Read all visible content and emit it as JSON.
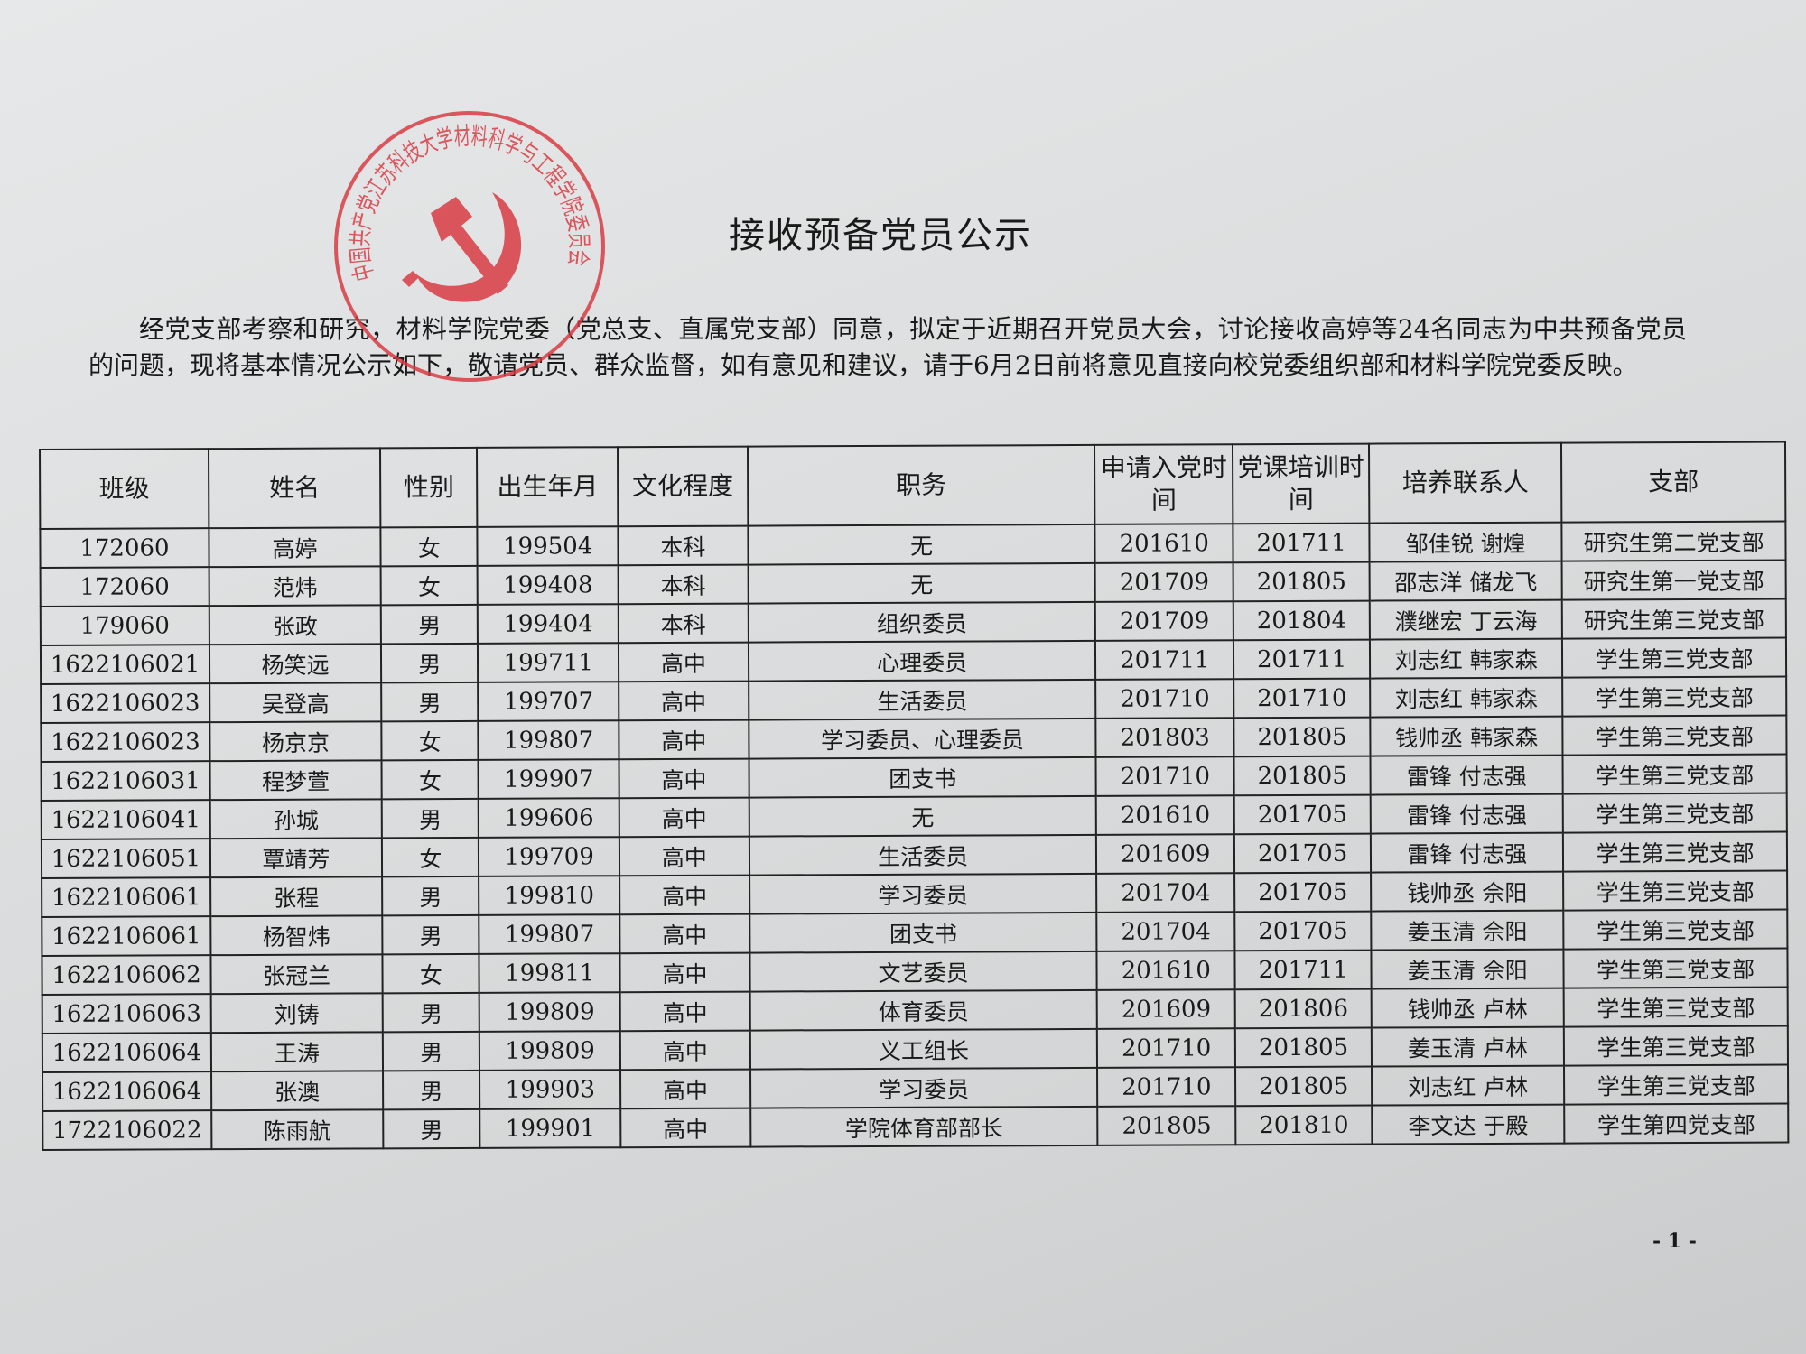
{
  "title": "接收预备党员公示",
  "intro": "经党支部考察和研究，材料学院党委（党总支、直属党支部）同意，拟定于近期召开党员大会，讨论接收高婷等24名同志为中共预备党员的问题，现将基本情况公示如下，敬请党员、群众监督，如有意见和建议，请于6月2日前将意见直接向校党委组织部和材料学院党委反映。",
  "stamp": {
    "text": "中国共产党江苏科技大学材料科学与工程学院委员会",
    "color": "#d9363e",
    "icon": "hammer-sickle-icon"
  },
  "table": {
    "headers": [
      "班级",
      "姓名",
      "性别",
      "出生年月",
      "文化程度",
      "职务",
      "申请入党时间",
      "党课培训时间",
      "培养联系人",
      "支部"
    ],
    "rows": [
      [
        "172060",
        "高婷",
        "女",
        "199504",
        "本科",
        "无",
        "201610",
        "201711",
        "邹佳锐  谢煌",
        "研究生第二党支部"
      ],
      [
        "172060",
        "范炜",
        "女",
        "199408",
        "本科",
        "无",
        "201709",
        "201805",
        "邵志洋  储龙飞",
        "研究生第一党支部"
      ],
      [
        "179060",
        "张政",
        "男",
        "199404",
        "本科",
        "组织委员",
        "201709",
        "201804",
        "濮继宏  丁云海",
        "研究生第三党支部"
      ],
      [
        "1622106021",
        "杨笑远",
        "男",
        "199711",
        "高中",
        "心理委员",
        "201711",
        "201711",
        "刘志红  韩家森",
        "学生第三党支部"
      ],
      [
        "1622106023",
        "吴登高",
        "男",
        "199707",
        "高中",
        "生活委员",
        "201710",
        "201710",
        "刘志红  韩家森",
        "学生第三党支部"
      ],
      [
        "1622106023",
        "杨京京",
        "女",
        "199807",
        "高中",
        "学习委员、心理委员",
        "201803",
        "201805",
        "钱帅丞  韩家森",
        "学生第三党支部"
      ],
      [
        "1622106031",
        "程梦萱",
        "女",
        "199907",
        "高中",
        "团支书",
        "201710",
        "201805",
        "雷锋  付志强",
        "学生第三党支部"
      ],
      [
        "1622106041",
        "孙城",
        "男",
        "199606",
        "高中",
        "无",
        "201610",
        "201705",
        "雷锋  付志强",
        "学生第三党支部"
      ],
      [
        "1622106051",
        "覃靖芳",
        "女",
        "199709",
        "高中",
        "生活委员",
        "201609",
        "201705",
        "雷锋  付志强",
        "学生第三党支部"
      ],
      [
        "1622106061",
        "张程",
        "男",
        "199810",
        "高中",
        "学习委员",
        "201704",
        "201705",
        "钱帅丞  佘阳",
        "学生第三党支部"
      ],
      [
        "1622106061",
        "杨智炜",
        "男",
        "199807",
        "高中",
        "团支书",
        "201704",
        "201705",
        "姜玉清  佘阳",
        "学生第三党支部"
      ],
      [
        "1622106062",
        "张冠兰",
        "女",
        "199811",
        "高中",
        "文艺委员",
        "201610",
        "201711",
        "姜玉清  佘阳",
        "学生第三党支部"
      ],
      [
        "1622106063",
        "刘铸",
        "男",
        "199809",
        "高中",
        "体育委员",
        "201609",
        "201806",
        "钱帅丞  卢林",
        "学生第三党支部"
      ],
      [
        "1622106064",
        "王涛",
        "男",
        "199809",
        "高中",
        "义工组长",
        "201710",
        "201805",
        "姜玉清  卢林",
        "学生第三党支部"
      ],
      [
        "1622106064",
        "张澳",
        "男",
        "199903",
        "高中",
        "学习委员",
        "201710",
        "201805",
        "刘志红  卢林",
        "学生第三党支部"
      ],
      [
        "1722106022",
        "陈雨航",
        "男",
        "199901",
        "高中",
        "学院体育部部长",
        "201805",
        "201810",
        "李文达  于殿",
        "学生第四党支部"
      ]
    ]
  },
  "page_number": "- 1 -"
}
